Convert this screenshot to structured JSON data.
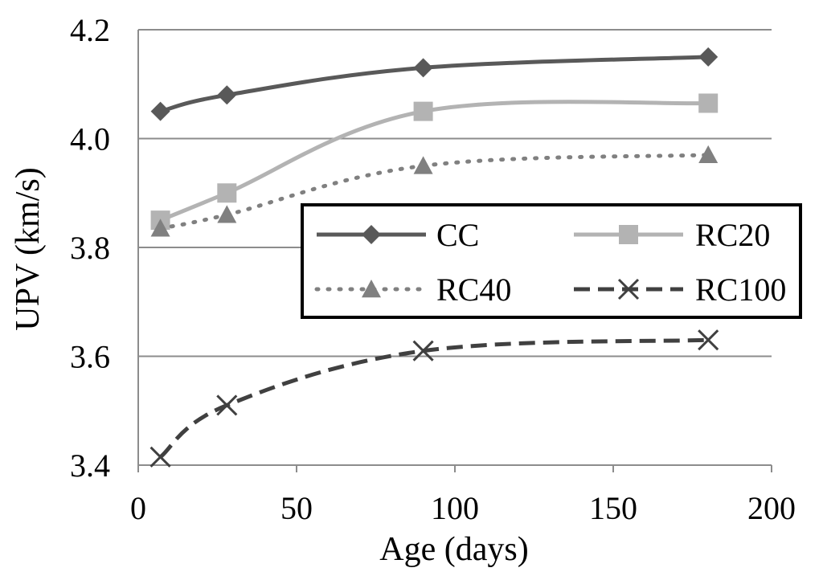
{
  "chart_data": {
    "type": "line",
    "title": "",
    "xlabel": "Age (days)",
    "ylabel": "UPV (km/s)",
    "xlim": [
      0,
      200
    ],
    "ylim": [
      3.4,
      4.2
    ],
    "x_ticks": [
      "0",
      "50",
      "100",
      "150",
      "200"
    ],
    "y_ticks": [
      "3.4",
      "3.6",
      "3.8",
      "4.0",
      "4.2"
    ],
    "x_tick_values": [
      0,
      50,
      100,
      150,
      200
    ],
    "y_tick_values": [
      3.4,
      3.6,
      3.8,
      4.0,
      4.2
    ],
    "grid": "horizontal",
    "legend_position": "center-right",
    "series": [
      {
        "name": "CC",
        "x": [
          7,
          28,
          90,
          180
        ],
        "y": [
          4.05,
          4.08,
          4.13,
          4.15
        ],
        "color": "#595959",
        "line": "solid",
        "marker": "diamond"
      },
      {
        "name": "RC20",
        "x": [
          7,
          28,
          90,
          180
        ],
        "y": [
          3.85,
          3.9,
          4.05,
          4.065
        ],
        "color": "#b3b3b3",
        "line": "solid",
        "marker": "square"
      },
      {
        "name": "RC40",
        "x": [
          7,
          28,
          90,
          180
        ],
        "y": [
          3.835,
          3.86,
          3.95,
          3.97
        ],
        "color": "#808080",
        "line": "dotted",
        "marker": "triangle"
      },
      {
        "name": "RC100",
        "x": [
          7,
          28,
          90,
          180
        ],
        "y": [
          3.415,
          3.51,
          3.61,
          3.63
        ],
        "color": "#404040",
        "line": "dashed",
        "marker": "x"
      }
    ]
  }
}
